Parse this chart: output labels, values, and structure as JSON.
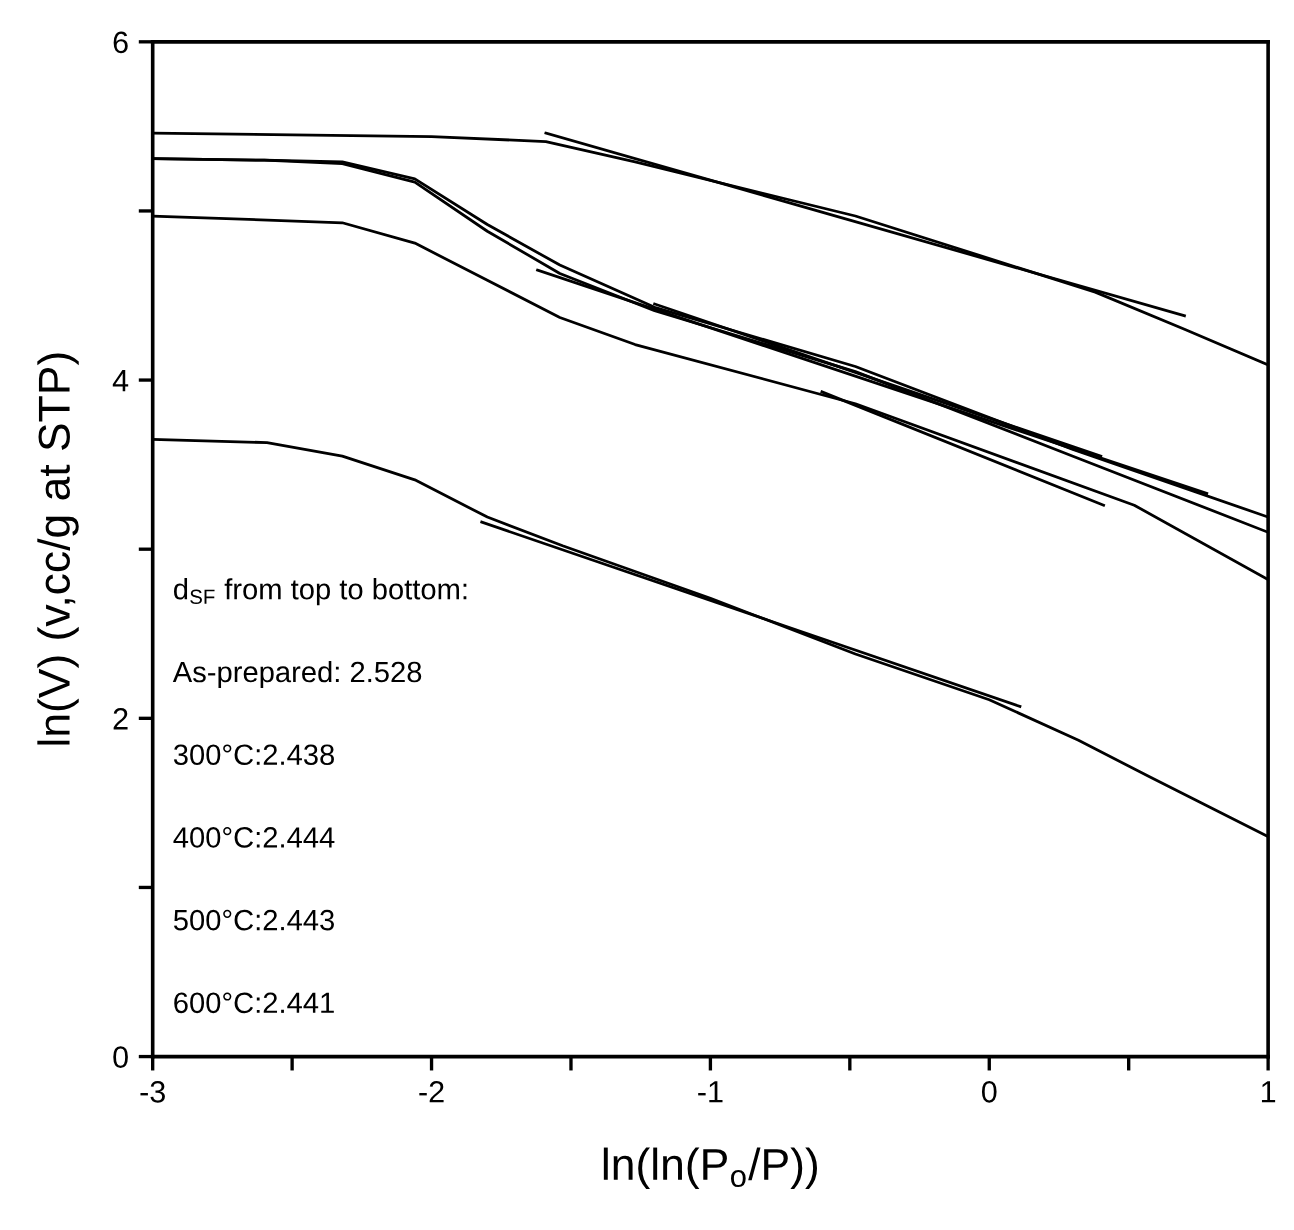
{
  "chart_data": {
    "type": "line",
    "xlabel": "ln(ln(P$_{o}$/P))",
    "ylabel": "ln(V) (v,cc/g at STP)",
    "xlim": [
      -3,
      1
    ],
    "ylim": [
      0,
      6
    ],
    "xticks": [
      -3,
      {
        "value": -2.5,
        "label": null
      },
      -2,
      {
        "value": -1.5,
        "label": null
      },
      -1,
      {
        "value": -0.5,
        "label": null
      },
      0,
      {
        "value": 0.5,
        "label": null
      },
      1
    ],
    "yticks": [
      0,
      {
        "value": 1,
        "label": null
      },
      2,
      {
        "value": 3,
        "label": null
      },
      4,
      {
        "value": 5,
        "label": null
      },
      6
    ],
    "grid": false,
    "marker": "none",
    "line_style": "solid",
    "series": [
      {
        "color": "#000000",
        "x": [
          -3,
          -2.5,
          -2.0,
          -1.59,
          -1.27,
          -0.48,
          0.38,
          0.7,
          1.0
        ],
        "values": [
          5.46,
          5.45,
          5.44,
          5.41,
          5.29,
          4.97,
          4.52,
          4.3,
          4.09
        ]
      },
      {
        "color": "#000000",
        "x": [
          -3,
          -2.6,
          -2.32,
          -2.06,
          -1.8,
          -1.54,
          -1.2,
          -0.48,
          0.3,
          1.0
        ],
        "values": [
          5.31,
          5.3,
          5.29,
          5.19,
          4.92,
          4.68,
          4.43,
          4.08,
          3.59,
          3.19
        ]
      },
      {
        "color": "#000000",
        "x": [
          -3,
          -2.6,
          -2.32,
          -2.06,
          -1.8,
          -1.54,
          -1.2,
          -0.48,
          0.3,
          1.0
        ],
        "values": [
          5.31,
          5.3,
          5.28,
          5.17,
          4.88,
          4.63,
          4.41,
          4.05,
          3.55,
          3.1
        ]
      },
      {
        "color": "#000000",
        "x": [
          -3,
          -2.32,
          -2.06,
          -1.8,
          -1.54,
          -1.27,
          -0.48,
          0.52,
          1.0
        ],
        "values": [
          4.97,
          4.93,
          4.81,
          4.59,
          4.37,
          4.21,
          3.86,
          3.26,
          2.82
        ]
      },
      {
        "color": "#000000",
        "x": [
          -3,
          -2.59,
          -2.32,
          -2.06,
          -1.8,
          -1.53,
          -1.0,
          -0.48,
          0.0,
          0.32,
          0.58,
          1.0
        ],
        "values": [
          3.65,
          3.63,
          3.55,
          3.41,
          3.19,
          3.02,
          2.71,
          2.38,
          2.11,
          1.87,
          1.65,
          1.3
        ]
      },
      {
        "color": "#000000",
        "x": [
          -1.59,
          0.7
        ],
        "values": [
          5.46,
          4.38
        ]
      },
      {
        "color": "#000000",
        "x": [
          -1.62,
          0.78
        ],
        "values": [
          4.65,
          3.33
        ]
      },
      {
        "color": "#000000",
        "x": [
          -1.2,
          0.4
        ],
        "values": [
          4.45,
          3.55
        ]
      },
      {
        "color": "#000000",
        "x": [
          -0.6,
          0.41
        ],
        "values": [
          3.93,
          3.26
        ]
      },
      {
        "color": "#000000",
        "x": [
          -1.82,
          0.11
        ],
        "values": [
          3.16,
          2.07
        ]
      }
    ],
    "annotations": [
      "d$_{SF}$ from top to bottom:",
      "As-prepared: 2.528",
      "300°C:2.438",
      "400°C:2.444",
      "500°C:2.443",
      "600°C:2.441"
    ]
  }
}
